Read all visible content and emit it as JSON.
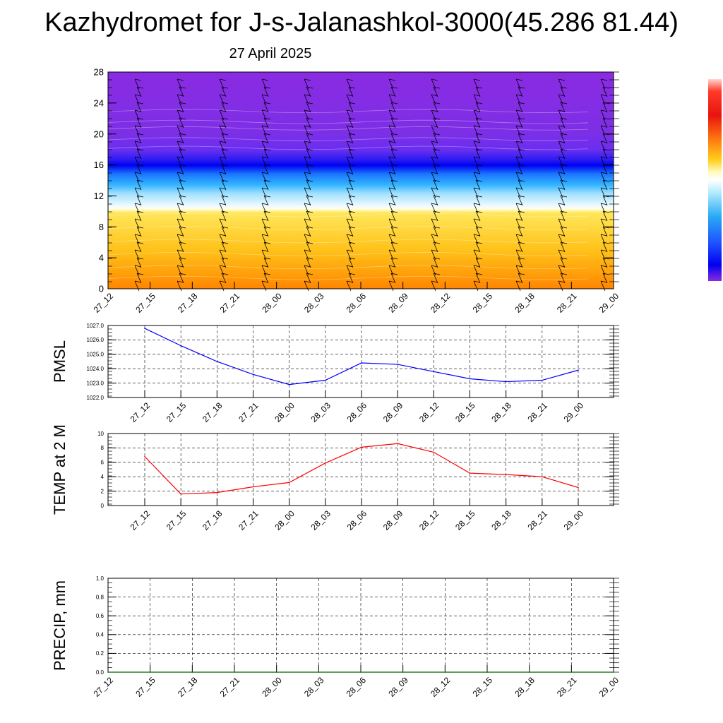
{
  "header": {
    "title": "Kazhydromet for J-s-Jalanashkol-3000(45.286 81.44)",
    "subtitle": "27 April 2025"
  },
  "colors": {
    "pmsl_line": "#0000ff",
    "temp_line": "#ff0000",
    "precip_line": "#006400",
    "cross_section_top": "#8a2be2",
    "cross_section_bottom": "#ff8c00"
  },
  "chart_data": [
    {
      "type": "heatmap",
      "title": "",
      "xlabel": "",
      "ylabel": "",
      "x": [
        "27_12",
        "27_15",
        "27_18",
        "27_21",
        "28_00",
        "28_03",
        "28_06",
        "28_09",
        "28_12",
        "28_15",
        "28_18",
        "28_21",
        "29_00"
      ],
      "y_ticks": [
        0,
        4,
        8,
        12,
        16,
        20,
        24,
        28
      ],
      "ylim": [
        0,
        28
      ],
      "colorbar": "temperature-style ramp: purple at top of scale through blue, cyan, white, yellow to orange/red at bottom",
      "color_bands": [
        {
          "from": 0,
          "to": 3,
          "color": "orange"
        },
        {
          "from": 3,
          "to": 10,
          "color": "yellow"
        },
        {
          "from": 10,
          "to": 12,
          "color": "white/light cyan"
        },
        {
          "from": 12,
          "to": 16,
          "color": "cyan to blue"
        },
        {
          "from": 16,
          "to": 28,
          "color": "blue-violet to purple"
        }
      ],
      "overlay": "wind barbs"
    },
    {
      "type": "line",
      "title": "",
      "xlabel": "",
      "ylabel": "PMSL",
      "x": [
        "27_12",
        "27_15",
        "27_18",
        "27_21",
        "28_00",
        "28_03",
        "28_06",
        "28_09",
        "28_12",
        "28_15",
        "28_18",
        "28_21",
        "29_00"
      ],
      "y_ticks": [
        "1022.0",
        "1023.0",
        "1024.0",
        "1025.0",
        "1026.0",
        "1027.0"
      ],
      "ylim": [
        1022,
        1027
      ],
      "series": [
        {
          "values": [
            1026.8,
            1025.6,
            1024.5,
            1023.6,
            1022.9,
            1023.2,
            1024.4,
            1024.3,
            1023.8,
            1023.3,
            1023.1,
            1023.2,
            1023.9
          ]
        }
      ],
      "grid": true
    },
    {
      "type": "line",
      "title": "",
      "xlabel": "",
      "ylabel": "TEMP at 2 M",
      "x": [
        "27_12",
        "27_15",
        "27_18",
        "27_21",
        "28_00",
        "28_03",
        "28_06",
        "28_09",
        "28_12",
        "28_15",
        "28_18",
        "28_21",
        "29_00"
      ],
      "y_ticks": [
        "0",
        "2",
        "4",
        "6",
        "8",
        "10"
      ],
      "ylim": [
        0,
        10
      ],
      "series": [
        {
          "values": [
            6.8,
            1.6,
            1.8,
            2.6,
            3.2,
            5.9,
            8.1,
            8.6,
            7.4,
            4.5,
            4.3,
            4.0,
            2.5
          ]
        }
      ],
      "grid": true
    },
    {
      "type": "line",
      "title": "",
      "xlabel": "",
      "ylabel": "PRECIP, mm",
      "x": [
        "27_12",
        "27_15",
        "27_18",
        "27_21",
        "28_00",
        "28_03",
        "28_06",
        "28_09",
        "28_12",
        "28_15",
        "28_18",
        "28_21",
        "29_00"
      ],
      "y_ticks": [
        "0.0",
        "0.2",
        "0.4",
        "0.6",
        "0.8",
        "1.0"
      ],
      "ylim": [
        0,
        1
      ],
      "series": [
        {
          "values": [
            0,
            0,
            0,
            0,
            0,
            0,
            0,
            0,
            0,
            0,
            0,
            0,
            0
          ]
        }
      ],
      "grid": true
    }
  ]
}
